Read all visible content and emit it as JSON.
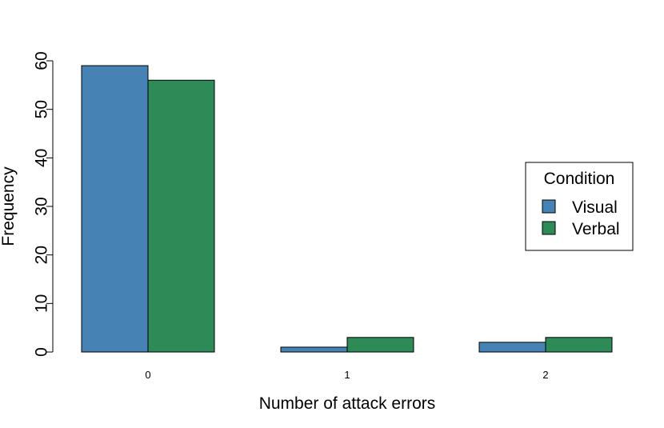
{
  "chart_data": {
    "type": "bar",
    "title": "",
    "xlabel": "Number of attack errors",
    "ylabel": "Frequency",
    "categories": [
      "0",
      "1",
      "2"
    ],
    "ylim": [
      0,
      60
    ],
    "yticks": [
      "0",
      "10",
      "20",
      "30",
      "40",
      "50",
      "60"
    ],
    "grid": false,
    "legend": {
      "title": "Condition",
      "placement": "right"
    },
    "series": [
      {
        "name": "Visual",
        "values": [
          59,
          1,
          2
        ],
        "color": "#4682B4"
      },
      {
        "name": "Verbal",
        "values": [
          56,
          3,
          3
        ],
        "color": "#2E8B57"
      }
    ]
  }
}
